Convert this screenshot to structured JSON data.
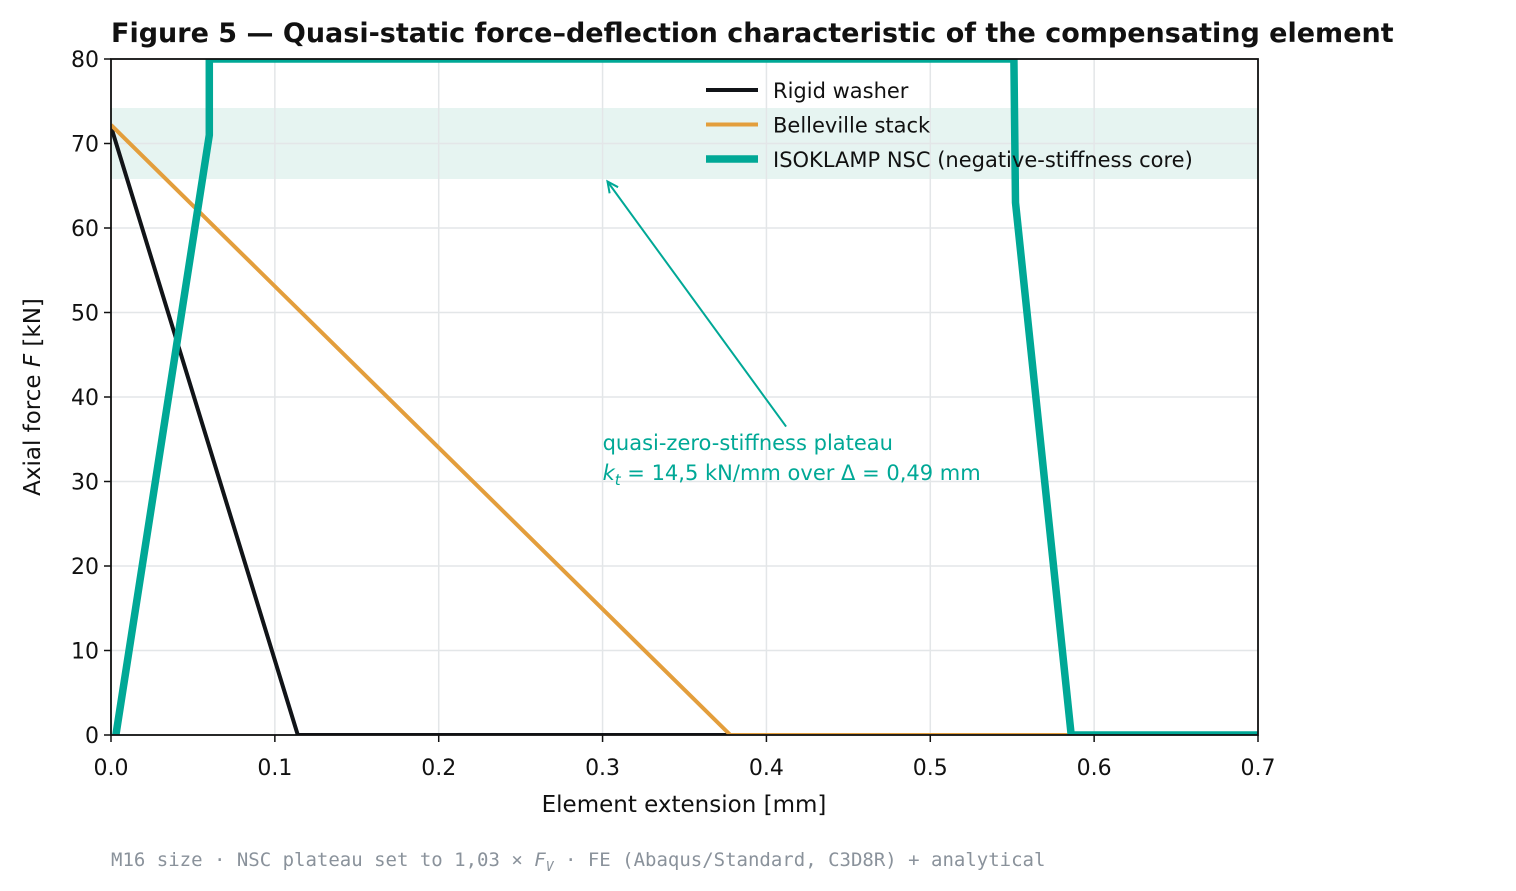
{
  "chart_data": {
    "type": "line",
    "title": "Figure 5 — Quasi-static force–deflection characteristic of the compensating element",
    "xlabel": "Element extension  [mm]",
    "ylabel_prefix": "Axial force ",
    "ylabel_var": "F",
    "ylabel_unit": "  [kN]",
    "xlim": [
      0.0,
      0.7
    ],
    "ylim": [
      0,
      80
    ],
    "xticks": [
      "0.0",
      "0.1",
      "0.2",
      "0.3",
      "0.4",
      "0.5",
      "0.6",
      "0.7"
    ],
    "yticks": [
      "0",
      "10",
      "20",
      "30",
      "40",
      "50",
      "60",
      "70",
      "80"
    ],
    "grid": true,
    "legend_position": "top-right",
    "band": {
      "y": [
        65.8,
        74.2
      ],
      "color": "#e6f4f1"
    },
    "series": [
      {
        "name": "Rigid washer",
        "color": "#111418",
        "points": [
          [
            0.0,
            72.0
          ],
          [
            0.114,
            0.0
          ],
          [
            0.7,
            0.0
          ]
        ]
      },
      {
        "name": "Belleville stack",
        "color": "#e39e3c",
        "points": [
          [
            0.0,
            72.2
          ],
          [
            0.378,
            0.0
          ],
          [
            0.7,
            0.0
          ]
        ]
      },
      {
        "name": "ISOKLAMP NSC (negative-stiffness core)",
        "color": "#00a896",
        "points": [
          [
            0.003,
            0.0
          ],
          [
            0.06,
            71.0
          ],
          [
            0.06,
            80.0
          ],
          [
            0.551,
            80.0
          ],
          [
            0.552,
            63.0
          ],
          [
            0.586,
            0.0
          ],
          [
            0.7,
            0.0
          ]
        ]
      }
    ],
    "annotation": {
      "line1": "quasi-zero-stiffness plateau",
      "line2_var": "k",
      "line2_sub": "t",
      "line2_rest": " = 14,5 kN/mm over Δ = 0,49 mm",
      "color": "#00a896",
      "text_at": [
        0.3,
        33
      ],
      "arrow_from": [
        0.412,
        36.5
      ],
      "arrow_to": [
        0.303,
        65.5
      ]
    }
  },
  "footnote": {
    "prefix": "M16 size · NSC plateau set to 1,03 × ",
    "var": "F",
    "sub": "V",
    "suffix": " · FE (Abaqus/Standard, C3D8R) + analytical"
  }
}
